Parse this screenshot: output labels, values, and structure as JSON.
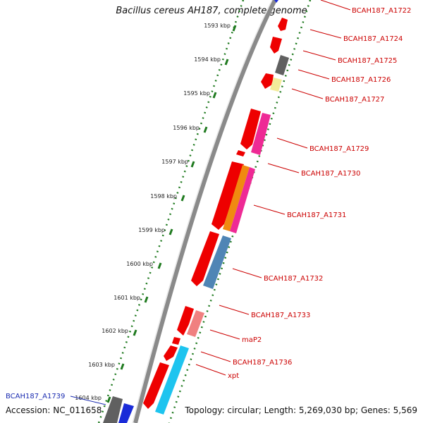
{
  "title": "Bacillus cereus AH187, complete genome",
  "accession": "Accession: NC_011658",
  "topology": "Topology: circular; Length: 5,269,030 bp; Genes: 5,569",
  "colors": {
    "backbone": "#8a8a8a",
    "ticks": "#1f7a1f",
    "red": "#ee0000",
    "grey": "#606060",
    "pale_yellow": "#f2eb9a",
    "pink": "#ee2a95",
    "orange": "#f08a10",
    "steel_blue": "#4f85b5",
    "salmon": "#f08080",
    "cyan": "#1ec4ef",
    "blue": "#1a2bd8",
    "label_red": "#cc0000",
    "label_blue": "#1a2bb0"
  },
  "kbp_labels": [
    "1593 kbp",
    "1594 kbp",
    "1595 kbp",
    "1596 kbp",
    "1597 kbp",
    "1598 kbp",
    "1599 kbp",
    "1600 kbp",
    "1601 kbp",
    "1602 kbp",
    "1603 kbp",
    "1604 kbp"
  ],
  "genes": [
    {
      "label": "BCAH187_A1722",
      "color": "red"
    },
    {
      "label": "BCAH187_A1724",
      "color": "red"
    },
    {
      "label": "BCAH187_A1725",
      "color": "red"
    },
    {
      "label": "BCAH187_A1726",
      "color": "red"
    },
    {
      "label": "BCAH187_A1727",
      "color": "red"
    },
    {
      "label": "BCAH187_A1729",
      "color": "red"
    },
    {
      "label": "BCAH187_A1730",
      "color": "red"
    },
    {
      "label": "BCAH187_A1731",
      "color": "red"
    },
    {
      "label": "BCAH187_A1732",
      "color": "red"
    },
    {
      "label": "BCAH187_A1733",
      "color": "red"
    },
    {
      "label": "maP2",
      "color": "red"
    },
    {
      "label": "BCAH187_A1736",
      "color": "red"
    },
    {
      "label": "xpt",
      "color": "red"
    },
    {
      "label": "BCAH187_A1739",
      "color": "blue"
    }
  ]
}
